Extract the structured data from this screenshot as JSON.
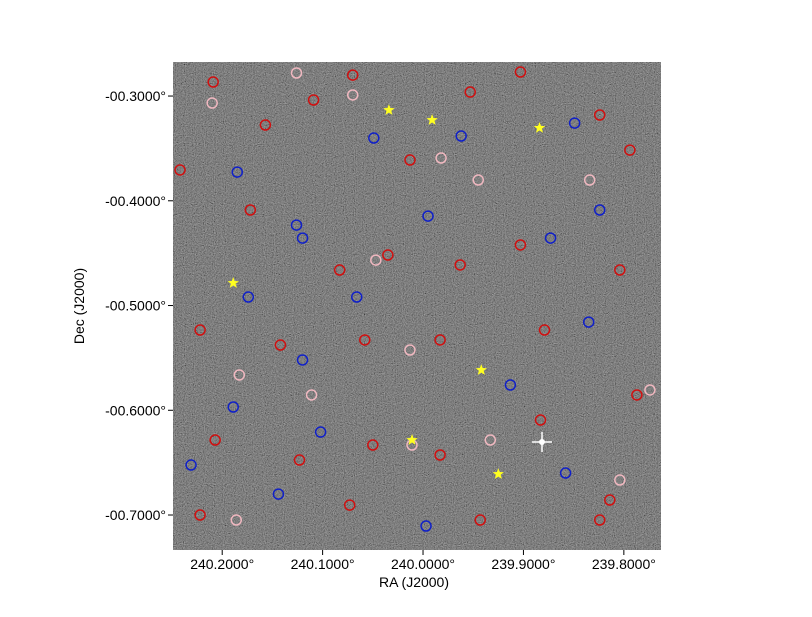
{
  "chart_data": {
    "type": "scatter",
    "xlabel": "RA (J2000)",
    "ylabel": "Dec (J2000)",
    "xlim": [
      240.249,
      239.763
    ],
    "ylim": [
      -0.7334,
      -0.2675
    ],
    "xticks": [
      {
        "value": 240.2,
        "label": "240.2000°"
      },
      {
        "value": 240.1,
        "label": "240.1000°"
      },
      {
        "value": 240.0,
        "label": "240.0000°"
      },
      {
        "value": 239.9,
        "label": "239.9000°"
      },
      {
        "value": 239.8,
        "label": "239.8000°"
      }
    ],
    "yticks": [
      {
        "value": -0.3,
        "label": "-00.3000°"
      },
      {
        "value": -0.4,
        "label": "-00.4000°"
      },
      {
        "value": -0.5,
        "label": "-00.5000°"
      },
      {
        "value": -0.6,
        "label": "-00.6000°"
      },
      {
        "value": -0.7,
        "label": "-00.7000°"
      }
    ],
    "series": [
      {
        "color": "#d01010",
        "marker": "circle",
        "x": [
          240.209,
          240.157,
          240.109,
          240.07,
          240.013,
          239.953,
          239.903,
          239.824,
          239.794,
          240.242,
          240.172,
          240.083,
          240.035,
          239.963,
          239.903,
          239.804,
          240.222,
          240.142,
          240.058,
          239.983,
          239.879,
          239.787,
          240.207,
          240.123,
          240.05,
          239.983,
          239.883,
          239.814,
          240.222,
          240.073,
          239.943,
          239.824
        ],
        "values": [
          -0.2866,
          -0.3277,
          -0.3038,
          -0.28,
          -0.3611,
          -0.2962,
          -0.2771,
          -0.3181,
          -0.3516,
          -0.3706,
          -0.4088,
          -0.4661,
          -0.4518,
          -0.4613,
          -0.4422,
          -0.4661,
          -0.5234,
          -0.5377,
          -0.5329,
          -0.5329,
          -0.5234,
          -0.5854,
          -0.6284,
          -0.6475,
          -0.6332,
          -0.6427,
          -0.6093,
          -0.6857,
          -0.7,
          -0.6905,
          -0.7048,
          -0.7048
        ]
      },
      {
        "color": "#f0b8c0",
        "marker": "circle",
        "x": [
          240.21,
          240.126,
          240.07,
          239.982,
          239.945,
          239.834,
          240.047,
          240.013,
          240.183,
          240.111,
          239.933,
          240.011,
          240.186,
          239.804,
          239.774
        ],
        "values": [
          -0.3067,
          -0.278,
          -0.299,
          -0.3592,
          -0.3802,
          -0.3802,
          -0.4566,
          -0.5425,
          -0.5663,
          -0.5854,
          -0.6284,
          -0.6332,
          -0.7048,
          -0.6666,
          -0.5806
        ]
      },
      {
        "color": "#1020c8",
        "marker": "circle",
        "x": [
          240.049,
          239.962,
          239.849,
          240.185,
          240.126,
          240.12,
          239.995,
          239.873,
          240.174,
          240.066,
          240.12,
          239.835,
          239.913,
          240.189,
          240.102,
          240.231,
          240.144,
          239.997,
          239.858,
          239.824
        ],
        "values": [
          -0.3401,
          -0.3382,
          -0.3258,
          -0.3726,
          -0.4232,
          -0.4356,
          -0.4146,
          -0.4356,
          -0.4919,
          -0.4919,
          -0.552,
          -0.5158,
          -0.5759,
          -0.5969,
          -0.6208,
          -0.6523,
          -0.68,
          -0.7105,
          -0.6599,
          -0.4088
        ]
      },
      {
        "color": "#ffff20",
        "marker": "star",
        "x": [
          240.034,
          239.991,
          239.884,
          240.189,
          239.942,
          240.011,
          239.925
        ],
        "values": [
          -0.3134,
          -0.3229,
          -0.3305,
          -0.4785,
          -0.5616,
          -0.6284,
          -0.6609
        ]
      }
    ]
  }
}
